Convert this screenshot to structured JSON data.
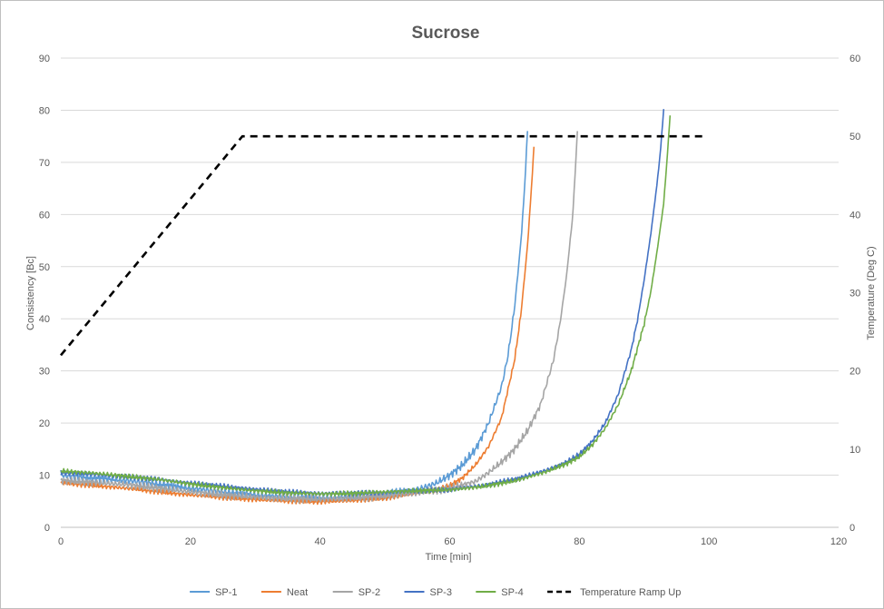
{
  "chart_data": {
    "type": "line",
    "title": "Sucrose",
    "xlabel": "Time [min]",
    "ylabel": "Consistency [Bc]",
    "y2label": "Temperature (Deg C)",
    "xlim": [
      0,
      120
    ],
    "ylim": [
      0,
      90
    ],
    "y2lim": [
      0,
      60
    ],
    "x_ticks": [
      0,
      20,
      40,
      60,
      80,
      100,
      120
    ],
    "y_ticks": [
      0,
      10,
      20,
      30,
      40,
      50,
      60,
      70,
      80,
      90
    ],
    "y2_ticks": [
      0,
      10,
      20,
      30,
      40,
      50,
      60
    ],
    "grid": "horizontal",
    "legend_position": "bottom",
    "series": [
      {
        "name": "SP-1",
        "color": "#5b9bd5",
        "axis": "left",
        "dashed": false,
        "noise": 0.9,
        "x": [
          0,
          5,
          10,
          15,
          20,
          25,
          30,
          35,
          40,
          45,
          50,
          55,
          58,
          60,
          62,
          64,
          66,
          68,
          69,
          70,
          71,
          71.5,
          72
        ],
        "y": [
          10,
          9.5,
          9,
          8.3,
          7.5,
          6.8,
          6.2,
          5.8,
          5.6,
          5.7,
          6.2,
          7.2,
          8.5,
          10,
          12,
          15,
          20,
          27,
          33,
          42,
          55,
          64,
          76
        ]
      },
      {
        "name": "Neat",
        "color": "#ed7d31",
        "axis": "left",
        "dashed": false,
        "noise": 0.5,
        "x": [
          0,
          5,
          10,
          15,
          20,
          25,
          30,
          35,
          40,
          45,
          50,
          55,
          58,
          60,
          62,
          64,
          66,
          68,
          70,
          71,
          72,
          72.5,
          73
        ],
        "y": [
          8.5,
          8,
          7.5,
          6.8,
          6.2,
          5.7,
          5.3,
          5,
          4.9,
          5.1,
          5.6,
          6.5,
          7.2,
          8,
          9.5,
          12,
          15.5,
          21,
          32,
          41,
          54,
          63,
          73
        ]
      },
      {
        "name": "SP-2",
        "color": "#a5a5a5",
        "axis": "left",
        "dashed": false,
        "noise": 0.8,
        "x": [
          0,
          5,
          10,
          15,
          20,
          25,
          30,
          35,
          40,
          45,
          50,
          55,
          60,
          64,
          66,
          68,
          70,
          72,
          74,
          76,
          77,
          78,
          79,
          79.7
        ],
        "y": [
          9,
          8.6,
          8.2,
          7.5,
          6.8,
          6.2,
          5.8,
          5.5,
          5.4,
          5.6,
          6,
          6.6,
          7.5,
          8.8,
          10.5,
          12.5,
          15,
          18.5,
          23.5,
          32,
          39,
          48,
          60,
          76
        ]
      },
      {
        "name": "SP-3",
        "color": "#4472c4",
        "axis": "left",
        "dashed": false,
        "noise": 0.5,
        "x": [
          0,
          5,
          10,
          15,
          20,
          25,
          30,
          35,
          40,
          45,
          50,
          55,
          60,
          65,
          70,
          75,
          78,
          80,
          82,
          84,
          86,
          88,
          89,
          90,
          91,
          92,
          92.5,
          93
        ],
        "y": [
          10.5,
          10.2,
          9.7,
          9.2,
          8.5,
          7.9,
          7.3,
          6.8,
          6.5,
          6.5,
          6.7,
          7,
          7.2,
          8,
          9.2,
          11,
          12.5,
          14,
          16.5,
          20,
          25.5,
          34,
          40,
          47.5,
          56,
          66,
          72,
          80
        ]
      },
      {
        "name": "SP-4",
        "color": "#70ad47",
        "axis": "left",
        "dashed": false,
        "noise": 0.5,
        "x": [
          0,
          5,
          10,
          15,
          20,
          25,
          30,
          35,
          40,
          45,
          50,
          55,
          60,
          65,
          70,
          75,
          78,
          80,
          82,
          84,
          86,
          88,
          90,
          91,
          92,
          93,
          93.5,
          94
        ],
        "y": [
          10.8,
          10.4,
          9.8,
          9.2,
          8.3,
          7.6,
          7,
          6.6,
          6.4,
          6.5,
          6.8,
          7,
          7.2,
          7.8,
          8.9,
          10.7,
          12.2,
          13.5,
          15.8,
          19,
          23.5,
          30,
          39,
          45,
          53,
          62,
          70,
          79
        ]
      },
      {
        "name": "Temperature Ramp Up",
        "color": "#000000",
        "axis": "right",
        "dashed": true,
        "noise": 0,
        "x": [
          0,
          28,
          99
        ],
        "y": [
          22,
          50,
          50
        ]
      }
    ]
  }
}
